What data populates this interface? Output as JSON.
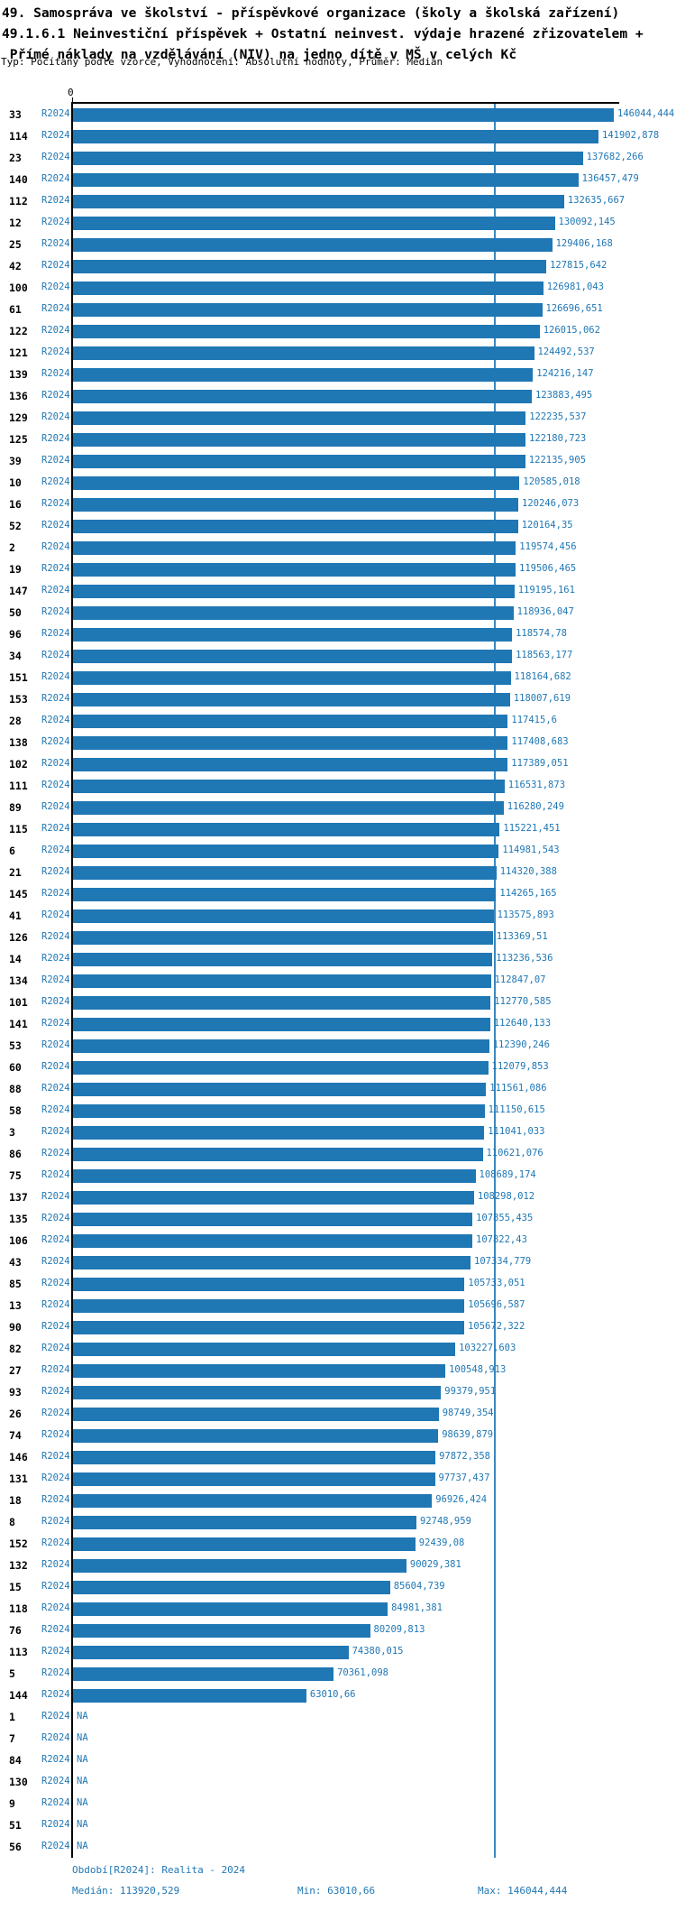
{
  "title": {
    "line1": "49. Samospráva ve školství - příspěvkové organizace (školy a školská zařízení)",
    "line2": "49.1.6.1 Neinvestiční příspěvek + Ostatní neinvest. výdaje hrazené zřizovatelem +",
    "line3": " Přímé náklady na vzdělávání (NIV) na jedno dítě v MŠ v celých Kč",
    "subtitle": "Typ: Počítaný podle vzorce, Vyhodnocení: Absolutní hodnoty, Průměr: Medián"
  },
  "axis": {
    "zero_label": "0"
  },
  "footer": {
    "period": "Období[R2024]: Realita - 2024",
    "median": "Medián: 113920,529",
    "min": "Min: 63010,66",
    "max": "Max: 146044,444"
  },
  "colors": {
    "bar": "#1f77b4",
    "blue_text": "#1f77b4",
    "median_line": "#3b87c0",
    "axis": "#000000"
  },
  "chart_data": {
    "type": "bar",
    "orientation": "horizontal",
    "series_name": "R2024",
    "na_text": "NA",
    "xlim": [
      0,
      147700
    ],
    "grid": false,
    "median": 113920.529,
    "min": 63010.66,
    "max": 146044.444,
    "rows": [
      {
        "id": "33",
        "value": 146044.444,
        "label": "146044,444"
      },
      {
        "id": "114",
        "value": 141902.878,
        "label": "141902,878"
      },
      {
        "id": "23",
        "value": 137682.266,
        "label": "137682,266"
      },
      {
        "id": "140",
        "value": 136457.479,
        "label": "136457,479"
      },
      {
        "id": "112",
        "value": 132635.667,
        "label": "132635,667"
      },
      {
        "id": "12",
        "value": 130092.145,
        "label": "130092,145"
      },
      {
        "id": "25",
        "value": 129406.168,
        "label": "129406,168"
      },
      {
        "id": "42",
        "value": 127815.642,
        "label": "127815,642"
      },
      {
        "id": "100",
        "value": 126981.043,
        "label": "126981,043"
      },
      {
        "id": "61",
        "value": 126696.651,
        "label": "126696,651"
      },
      {
        "id": "122",
        "value": 126015.062,
        "label": "126015,062"
      },
      {
        "id": "121",
        "value": 124492.537,
        "label": "124492,537"
      },
      {
        "id": "139",
        "value": 124216.147,
        "label": "124216,147"
      },
      {
        "id": "136",
        "value": 123883.495,
        "label": "123883,495"
      },
      {
        "id": "129",
        "value": 122235.537,
        "label": "122235,537"
      },
      {
        "id": "125",
        "value": 122180.723,
        "label": "122180,723"
      },
      {
        "id": "39",
        "value": 122135.905,
        "label": "122135,905"
      },
      {
        "id": "10",
        "value": 120585.018,
        "label": "120585,018"
      },
      {
        "id": "16",
        "value": 120246.073,
        "label": "120246,073"
      },
      {
        "id": "52",
        "value": 120164.35,
        "label": "120164,35"
      },
      {
        "id": "2",
        "value": 119574.456,
        "label": "119574,456"
      },
      {
        "id": "19",
        "value": 119506.465,
        "label": "119506,465"
      },
      {
        "id": "147",
        "value": 119195.161,
        "label": "119195,161"
      },
      {
        "id": "50",
        "value": 118936.047,
        "label": "118936,047"
      },
      {
        "id": "96",
        "value": 118574.78,
        "label": "118574,78"
      },
      {
        "id": "34",
        "value": 118563.177,
        "label": "118563,177"
      },
      {
        "id": "151",
        "value": 118164.682,
        "label": "118164,682"
      },
      {
        "id": "153",
        "value": 118007.619,
        "label": "118007,619"
      },
      {
        "id": "28",
        "value": 117415.6,
        "label": "117415,6"
      },
      {
        "id": "138",
        "value": 117408.683,
        "label": "117408,683"
      },
      {
        "id": "102",
        "value": 117389.051,
        "label": "117389,051"
      },
      {
        "id": "111",
        "value": 116531.873,
        "label": "116531,873"
      },
      {
        "id": "89",
        "value": 116280.249,
        "label": "116280,249"
      },
      {
        "id": "115",
        "value": 115221.451,
        "label": "115221,451"
      },
      {
        "id": "6",
        "value": 114981.543,
        "label": "114981,543"
      },
      {
        "id": "21",
        "value": 114320.388,
        "label": "114320,388"
      },
      {
        "id": "145",
        "value": 114265.165,
        "label": "114265,165"
      },
      {
        "id": "41",
        "value": 113575.893,
        "label": "113575,893"
      },
      {
        "id": "126",
        "value": 113369.51,
        "label": "113369,51"
      },
      {
        "id": "14",
        "value": 113236.536,
        "label": "113236,536"
      },
      {
        "id": "134",
        "value": 112847.07,
        "label": "112847,07"
      },
      {
        "id": "101",
        "value": 112770.585,
        "label": "112770,585"
      },
      {
        "id": "141",
        "value": 112640.133,
        "label": "112640,133"
      },
      {
        "id": "53",
        "value": 112390.246,
        "label": "112390,246"
      },
      {
        "id": "60",
        "value": 112079.853,
        "label": "112079,853"
      },
      {
        "id": "88",
        "value": 111561.086,
        "label": "111561,086"
      },
      {
        "id": "58",
        "value": 111150.615,
        "label": "111150,615"
      },
      {
        "id": "3",
        "value": 111041.033,
        "label": "111041,033"
      },
      {
        "id": "86",
        "value": 110621.076,
        "label": "110621,076"
      },
      {
        "id": "75",
        "value": 108689.174,
        "label": "108689,174"
      },
      {
        "id": "137",
        "value": 108298.012,
        "label": "108298,012"
      },
      {
        "id": "135",
        "value": 107855.435,
        "label": "107855,435"
      },
      {
        "id": "106",
        "value": 107822.43,
        "label": "107822,43"
      },
      {
        "id": "43",
        "value": 107334.779,
        "label": "107334,779"
      },
      {
        "id": "85",
        "value": 105733.051,
        "label": "105733,051"
      },
      {
        "id": "13",
        "value": 105696.587,
        "label": "105696,587"
      },
      {
        "id": "90",
        "value": 105672.322,
        "label": "105672,322"
      },
      {
        "id": "82",
        "value": 103227.603,
        "label": "103227,603"
      },
      {
        "id": "27",
        "value": 100548.913,
        "label": "100548,913"
      },
      {
        "id": "93",
        "value": 99379.951,
        "label": "99379,951"
      },
      {
        "id": "26",
        "value": 98749.354,
        "label": "98749,354"
      },
      {
        "id": "74",
        "value": 98639.879,
        "label": "98639,879"
      },
      {
        "id": "146",
        "value": 97872.358,
        "label": "97872,358"
      },
      {
        "id": "131",
        "value": 97737.437,
        "label": "97737,437"
      },
      {
        "id": "18",
        "value": 96926.424,
        "label": "96926,424"
      },
      {
        "id": "8",
        "value": 92748.959,
        "label": "92748,959"
      },
      {
        "id": "152",
        "value": 92439.08,
        "label": "92439,08"
      },
      {
        "id": "132",
        "value": 90029.381,
        "label": "90029,381"
      },
      {
        "id": "15",
        "value": 85604.739,
        "label": "85604,739"
      },
      {
        "id": "118",
        "value": 84981.381,
        "label": "84981,381"
      },
      {
        "id": "76",
        "value": 80209.813,
        "label": "80209,813"
      },
      {
        "id": "113",
        "value": 74380.015,
        "label": "74380,015"
      },
      {
        "id": "5",
        "value": 70361.098,
        "label": "70361,098"
      },
      {
        "id": "144",
        "value": 63010.66,
        "label": "63010,66"
      },
      {
        "id": "1",
        "value": null,
        "label": "NA"
      },
      {
        "id": "7",
        "value": null,
        "label": "NA"
      },
      {
        "id": "84",
        "value": null,
        "label": "NA"
      },
      {
        "id": "130",
        "value": null,
        "label": "NA"
      },
      {
        "id": "9",
        "value": null,
        "label": "NA"
      },
      {
        "id": "51",
        "value": null,
        "label": "NA"
      },
      {
        "id": "56",
        "value": null,
        "label": "NA"
      }
    ]
  }
}
